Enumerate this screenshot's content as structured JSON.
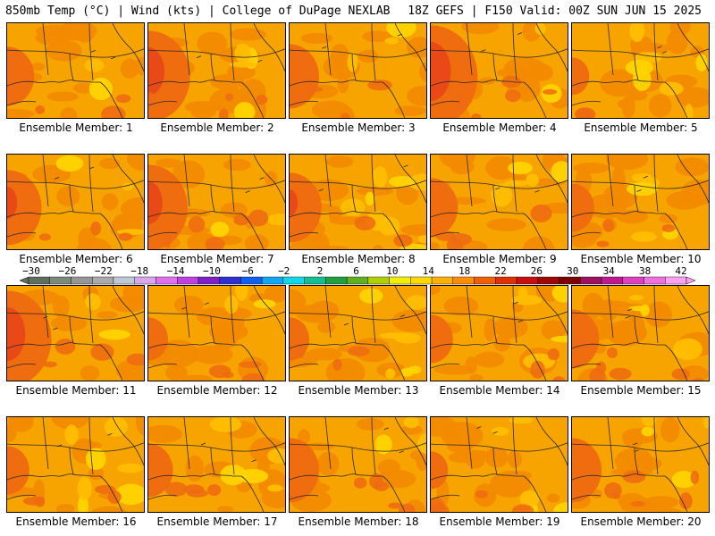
{
  "header": {
    "left": "850mb Temp (°C) | Wind (kts) | College of DuPage NEXLAB",
    "right": "18Z GEFS | F150 Valid: 00Z SUN JUN 15 2025"
  },
  "panel_label_prefix": "Ensemble Member: ",
  "members": [
    {
      "label": "Ensemble Member: 1",
      "hot_west": 0.55,
      "hot_east": 0.15,
      "cool_east": 0.1
    },
    {
      "label": "Ensemble Member: 2",
      "hot_west": 0.85,
      "hot_east": 0.2,
      "cool_east": 0.2
    },
    {
      "label": "Ensemble Member: 3",
      "hot_west": 0.6,
      "hot_east": 0.15,
      "cool_east": 0.15
    },
    {
      "label": "Ensemble Member: 4",
      "hot_west": 0.95,
      "hot_east": 0.25,
      "cool_east": 0.1
    },
    {
      "label": "Ensemble Member: 5",
      "hot_west": 0.35,
      "hot_east": 0.1,
      "cool_east": 0.35
    },
    {
      "label": "Ensemble Member: 6",
      "hot_west": 0.7,
      "hot_east": 0.15,
      "cool_east": 0.15
    },
    {
      "label": "Ensemble Member: 7",
      "hot_west": 0.8,
      "hot_east": 0.25,
      "cool_east": 0.1
    },
    {
      "label": "Ensemble Member: 8",
      "hot_west": 0.65,
      "hot_east": 0.1,
      "cool_east": 0.55
    },
    {
      "label": "Ensemble Member: 9",
      "hot_west": 0.55,
      "hot_east": 0.2,
      "cool_east": 0.25
    },
    {
      "label": "Ensemble Member: 10",
      "hot_west": 0.45,
      "hot_east": 0.15,
      "cool_east": 0.25
    },
    {
      "label": "Ensemble Member: 11",
      "hot_west": 0.9,
      "hot_east": 0.2,
      "cool_east": 0.1
    },
    {
      "label": "Ensemble Member: 12",
      "hot_west": 0.4,
      "hot_east": 0.2,
      "cool_east": 0.15
    },
    {
      "label": "Ensemble Member: 13",
      "hot_west": 0.4,
      "hot_east": 0.15,
      "cool_east": 0.35
    },
    {
      "label": "Ensemble Member: 14",
      "hot_west": 0.45,
      "hot_east": 0.15,
      "cool_east": 0.25
    },
    {
      "label": "Ensemble Member: 15",
      "hot_west": 0.55,
      "hot_east": 0.4,
      "cool_east": 0.2
    },
    {
      "label": "Ensemble Member: 16",
      "hot_west": 0.45,
      "hot_east": 0.2,
      "cool_east": 0.35
    },
    {
      "label": "Ensemble Member: 17",
      "hot_west": 0.5,
      "hot_east": 0.2,
      "cool_east": 0.25
    },
    {
      "label": "Ensemble Member: 18",
      "hot_west": 0.6,
      "hot_east": 0.3,
      "cool_east": 0.15
    },
    {
      "label": "Ensemble Member: 19",
      "hot_west": 0.35,
      "hot_east": 0.2,
      "cool_east": 0.25
    },
    {
      "label": "Ensemble Member: 20",
      "hot_west": 0.6,
      "hot_east": 0.35,
      "cool_east": 0.2
    }
  ],
  "colorbar": {
    "ticks": [
      "-30",
      "-26",
      "-22",
      "-18",
      "-14",
      "-10",
      "-6",
      "-2",
      "2",
      "6",
      "10",
      "14",
      "18",
      "22",
      "26",
      "30",
      "34",
      "38",
      "42"
    ],
    "colors": [
      "#5f6f5f",
      "#7c8c7c",
      "#969696",
      "#aaaaaa",
      "#c0c8d8",
      "#d8a8e8",
      "#e070f0",
      "#c040e0",
      "#8020c8",
      "#3030d0",
      "#1060f0",
      "#10a8f0",
      "#10d8e8",
      "#10c090",
      "#20a040",
      "#60b020",
      "#b0d000",
      "#f0f000",
      "#ffd800",
      "#ffb000",
      "#ff8c00",
      "#f06000",
      "#e03000",
      "#c81010",
      "#a00808",
      "#800000",
      "#a01060",
      "#c01890",
      "#e040c0",
      "#f070e0",
      "#ffa0f0"
    ]
  },
  "field_colors": {
    "base": "#f7a400",
    "warm": "#f38a00",
    "hot": "#ee6a10",
    "hotter": "#e84818",
    "cool": "#ffbe00",
    "cooler": "#ffd400",
    "coast": "#2a2a2a"
  }
}
